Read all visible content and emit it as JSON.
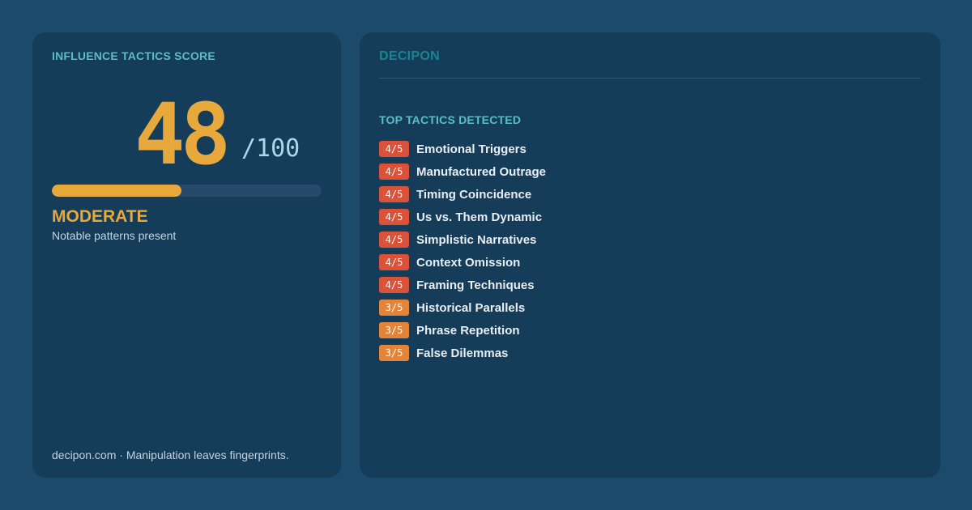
{
  "score_card": {
    "label": "INFLUENCE TACTICS SCORE",
    "score": "48",
    "score_max": "/100",
    "progress_fraction": 0.48,
    "level": "MODERATE",
    "level_description": "Notable patterns present",
    "footer": "decipon.com · Manipulation leaves fingerprints.",
    "accent_color": "#e8a93c"
  },
  "tactics_card": {
    "brand": "DECIPON",
    "label": "TOP TACTICS DETECTED",
    "tactics": [
      {
        "badge": "4/5",
        "severity": 4,
        "name": "Emotional Triggers"
      },
      {
        "badge": "4/5",
        "severity": 4,
        "name": "Manufactured Outrage"
      },
      {
        "badge": "4/5",
        "severity": 4,
        "name": "Timing Coincidence"
      },
      {
        "badge": "4/5",
        "severity": 4,
        "name": "Us vs. Them Dynamic"
      },
      {
        "badge": "4/5",
        "severity": 4,
        "name": "Simplistic Narratives"
      },
      {
        "badge": "4/5",
        "severity": 4,
        "name": "Context Omission"
      },
      {
        "badge": "4/5",
        "severity": 4,
        "name": "Framing Techniques"
      },
      {
        "badge": "3/5",
        "severity": 3,
        "name": "Historical Parallels"
      },
      {
        "badge": "3/5",
        "severity": 3,
        "name": "Phrase Repetition"
      },
      {
        "badge": "3/5",
        "severity": 3,
        "name": "False Dilemmas"
      }
    ],
    "severity_colors": {
      "4": "#d9533a",
      "3": "#e2843a"
    }
  }
}
